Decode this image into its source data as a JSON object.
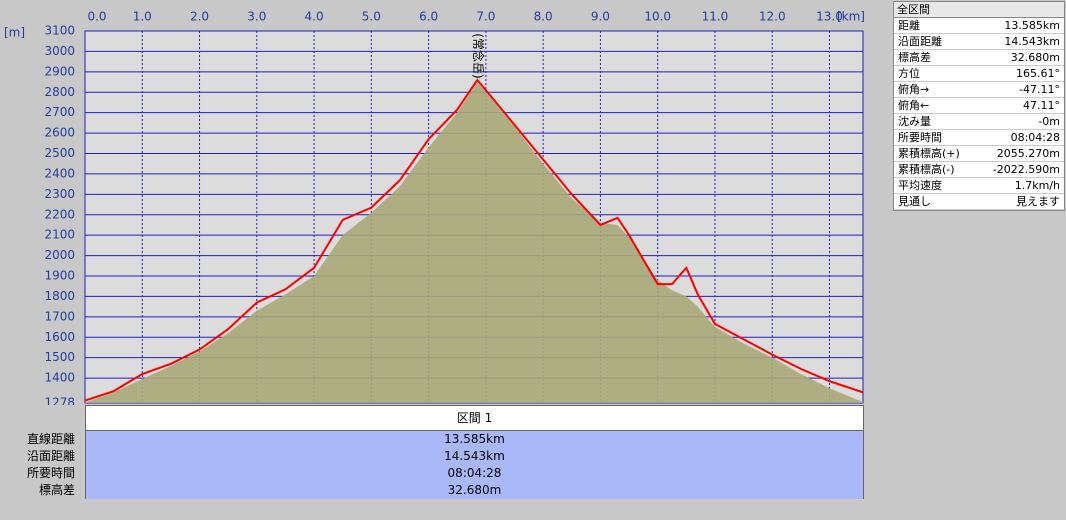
{
  "chart_data": {
    "type": "line",
    "x_label": "[km]",
    "y_label": "[m]",
    "xlim": [
      0,
      13.585
    ],
    "ylim": [
      1278,
      3100
    ],
    "xticks": [
      {
        "value": 0,
        "label": "0.0"
      },
      {
        "value": 1,
        "label": "1.0"
      },
      {
        "value": 2,
        "label": "2.0"
      },
      {
        "value": 3,
        "label": "3.0"
      },
      {
        "value": 4,
        "label": "4.0"
      },
      {
        "value": 5,
        "label": "5.0"
      },
      {
        "value": 6,
        "label": "6.0"
      },
      {
        "value": 7,
        "label": "7.0"
      },
      {
        "value": 8,
        "label": "8.0"
      },
      {
        "value": 9,
        "label": "9.0"
      },
      {
        "value": 10,
        "label": "10.0"
      },
      {
        "value": 11,
        "label": "11.0"
      },
      {
        "value": 12,
        "label": "12.0"
      },
      {
        "value": 13,
        "label": "13.0"
      }
    ],
    "yticks": [
      1278,
      1400,
      1500,
      1600,
      1700,
      1800,
      1900,
      2000,
      2100,
      2200,
      2300,
      2400,
      2500,
      2600,
      2700,
      2800,
      2900,
      3000,
      3100
    ],
    "grid": true,
    "x": [
      0,
      0.5,
      1,
      1.5,
      2,
      2.5,
      3,
      3.5,
      4,
      4.5,
      5,
      5.5,
      6,
      6.5,
      6.85,
      7,
      7.5,
      8,
      8.5,
      9,
      9.3,
      9.5,
      10,
      10.25,
      10.5,
      10.7,
      11,
      11.5,
      12,
      12.5,
      13,
      13.585
    ],
    "series": [
      {
        "color": "#a8a878",
        "values": [
          1280,
          1330,
          1395,
          1460,
          1530,
          1620,
          1730,
          1810,
          1900,
          2100,
          2210,
          2340,
          2530,
          2700,
          2850,
          2800,
          2630,
          2450,
          2280,
          2160,
          2150,
          2090,
          1880,
          1830,
          1800,
          1750,
          1650,
          1570,
          1500,
          1420,
          1350,
          1282
        ]
      },
      {
        "color": "#ff0000",
        "values": [
          1290,
          1336,
          1420,
          1470,
          1540,
          1640,
          1770,
          1835,
          1940,
          2175,
          2235,
          2370,
          2570,
          2715,
          2860,
          2810,
          2640,
          2470,
          2300,
          2150,
          2185,
          2100,
          1860,
          1860,
          1940,
          1810,
          1665,
          1590,
          1515,
          1445,
          1385,
          1330
        ]
      }
    ],
    "annotations": [
      {
        "text": "(常念岳)",
        "x": 6.85
      }
    ]
  },
  "summary": {
    "title": "全区間",
    "rows": [
      [
        "距離",
        "13.585km"
      ],
      [
        "沿面距離",
        "14.543km"
      ],
      [
        "標高差",
        "32.680m"
      ],
      [
        "方位",
        "165.61°"
      ],
      [
        "俯角→",
        "-47.11°"
      ],
      [
        "俯角←",
        "47.11°"
      ],
      [
        "沈み量",
        "-0m"
      ],
      [
        "所要時間",
        "08:04:28"
      ],
      [
        "累積標高(+)",
        "2055.270m"
      ],
      [
        "累積標高(-)",
        "-2022.590m"
      ],
      [
        "平均速度",
        "1.7km/h"
      ],
      [
        "見通し",
        "見えます"
      ]
    ]
  },
  "section_table": {
    "header": "区間 1",
    "rows": [
      [
        "直線距離",
        "13.585km"
      ],
      [
        "沿面距離",
        "14.543km"
      ],
      [
        "所要時間",
        "08:04:28"
      ],
      [
        "標高差",
        "32.680m"
      ]
    ]
  }
}
